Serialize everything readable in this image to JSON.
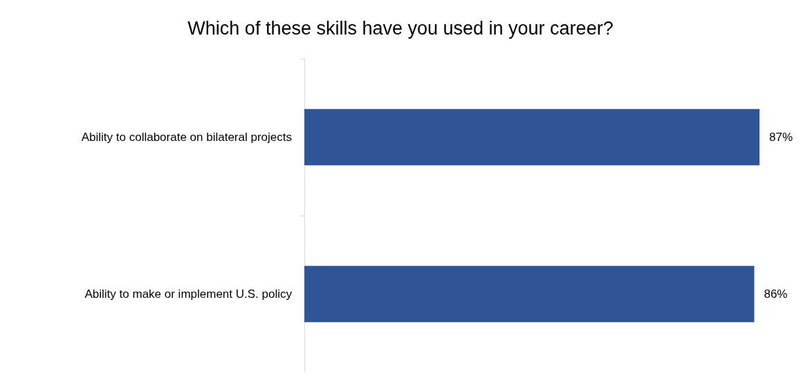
{
  "chart_data": {
    "type": "bar",
    "orientation": "horizontal",
    "title": "Which of these skills have you used in your career?",
    "categories": [
      "Ability to collaborate on bilateral projects",
      "Ability to make or implement U.S. policy"
    ],
    "values": [
      87,
      86
    ],
    "color": "#2f5597",
    "value_labels": [
      "87%",
      "86%"
    ],
    "tick_labels": "y"
  }
}
